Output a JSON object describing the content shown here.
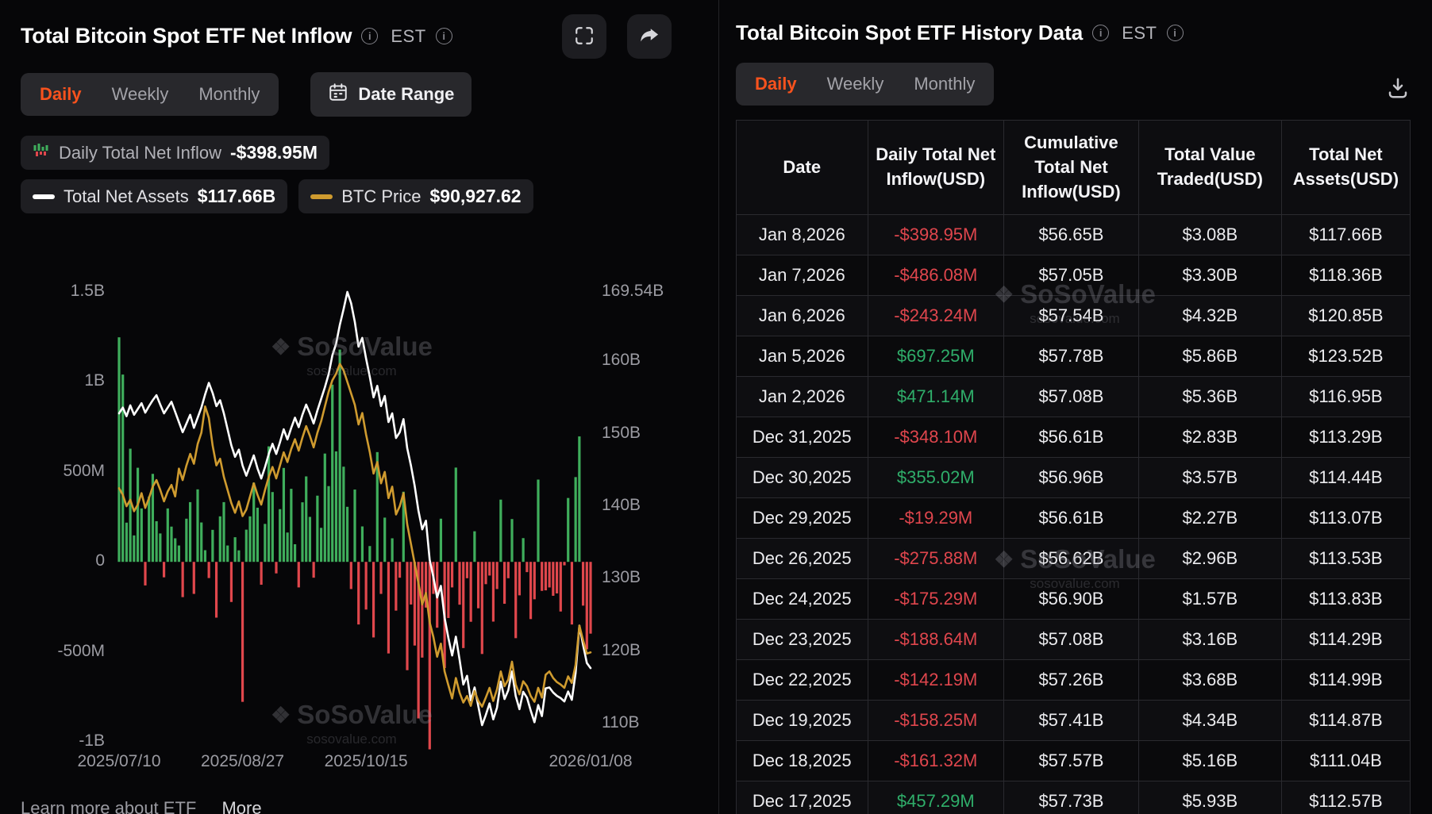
{
  "brand": {
    "name": "SoSoValue",
    "domain": "sosovalue.com",
    "accent": "#f8521d",
    "positive": "#3fae5c",
    "negative": "#e0474c",
    "btc_line": "#cf9b2f",
    "assets_line": "#ffffff"
  },
  "left_panel": {
    "title": "Total Bitcoin Spot ETF Net Inflow",
    "est_label": "EST",
    "tabs": [
      "Daily",
      "Weekly",
      "Monthly"
    ],
    "active_tab": "Daily",
    "date_range_label": "Date Range",
    "legend": {
      "inflow_label": "Daily Total Net Inflow",
      "inflow_value": "-$398.95M",
      "assets_label": "Total Net Assets",
      "assets_value": "$117.66B",
      "btc_label": "BTC Price",
      "btc_value": "$90,927.62"
    },
    "footer": {
      "learn": "Learn more about ETF",
      "more": "More"
    }
  },
  "chart_data": {
    "type": "bar",
    "title": "Total Bitcoin Spot ETF Net Inflow",
    "bar_series_name": "Daily Total Net Inflow (USD millions)",
    "colors": {
      "positive": "#3fae5c",
      "negative": "#e0474c"
    },
    "bars": [
      1248,
      1041,
      218,
      629,
      147,
      523,
      297,
      -131,
      363,
      489,
      226,
      158,
      -86,
      297,
      196,
      131,
      91,
      -196,
      240,
      332,
      -178,
      403,
      219,
      65,
      -90,
      178,
      -310,
      253,
      332,
      91,
      -223,
      137,
      64,
      -778,
      179,
      253,
      440,
      301,
      -127,
      211,
      642,
      388,
      -64,
      293,
      522,
      163,
      406,
      98,
      -142,
      331,
      475,
      250,
      -88,
      368,
      189,
      602,
      421,
      985,
      614,
      1180,
      529,
      306,
      -151,
      402,
      -348,
      197,
      -265,
      88,
      -420,
      610,
      -178,
      246,
      -509,
      131,
      -271,
      -88,
      390,
      -602,
      -237,
      -465,
      -870,
      -532,
      -254,
      -1042,
      -178,
      -366,
      240,
      -590,
      -312,
      -142,
      524,
      -238,
      -479,
      -91,
      -333,
      170,
      -258,
      -512,
      -124,
      -76,
      -332,
      -151,
      346,
      -233,
      -91,
      238,
      -424,
      -186,
      132,
      -57,
      -318,
      -208,
      457.29,
      -161.32,
      -158.25,
      -142.19,
      -188.64,
      -175.29,
      -275.88,
      -19.29,
      355.02,
      -348.1,
      471.14,
      697.25,
      -243.24,
      -486.08,
      -398.95
    ],
    "lines": [
      {
        "name": "Total Net Assets (USD billions)",
        "color": "#ffffff",
        "range": [
          107.5,
          169.54
        ],
        "values": [
          152.8,
          153.6,
          152.4,
          153.9,
          152.6,
          153.4,
          154.2,
          152.9,
          153.8,
          154.6,
          155.3,
          154.0,
          152.8,
          153.6,
          154.4,
          153.0,
          151.6,
          150.2,
          151.4,
          152.6,
          150.8,
          152.2,
          153.6,
          155.4,
          157.0,
          155.6,
          153.8,
          154.6,
          152.8,
          150.6,
          148.4,
          146.8,
          147.8,
          145.6,
          144.2,
          145.6,
          147.0,
          145.2,
          143.8,
          145.4,
          147.2,
          148.6,
          147.2,
          148.8,
          150.6,
          149.2,
          150.8,
          152.2,
          150.9,
          152.6,
          154.0,
          152.8,
          151.4,
          153.2,
          154.8,
          156.4,
          158.2,
          160.8,
          162.4,
          165.0,
          167.2,
          169.54,
          168.0,
          165.4,
          162.0,
          163.2,
          160.4,
          157.8,
          155.0,
          156.6,
          153.8,
          155.2,
          151.6,
          152.8,
          149.4,
          150.2,
          152.0,
          148.0,
          145.6,
          142.8,
          139.4,
          136.8,
          138.0,
          132.6,
          130.2,
          127.4,
          129.0,
          124.6,
          121.8,
          119.4,
          122.0,
          118.8,
          115.4,
          116.6,
          113.2,
          115.0,
          112.4,
          109.8,
          111.2,
          112.8,
          110.6,
          112.2,
          115.8,
          113.4,
          114.6,
          117.2,
          113.8,
          112.0,
          114.4,
          113.6,
          111.8,
          110.2,
          112.57,
          111.04,
          114.87,
          114.99,
          114.29,
          113.83,
          113.53,
          113.07,
          114.44,
          113.29,
          116.95,
          123.52,
          120.85,
          118.36,
          117.66
        ]
      },
      {
        "name": "BTC Price (USD thousands)",
        "color": "#cf9b2f",
        "range": [
          80,
          135
        ],
        "values": [
          111.0,
          110.2,
          108.8,
          109.6,
          108.2,
          109.0,
          110.4,
          108.6,
          109.8,
          111.2,
          112.0,
          110.8,
          109.4,
          110.6,
          111.4,
          110.0,
          113.4,
          112.0,
          113.8,
          115.2,
          114.0,
          116.4,
          117.8,
          121.0,
          119.6,
          116.2,
          113.8,
          114.6,
          112.4,
          110.8,
          109.2,
          108.0,
          109.4,
          107.6,
          108.4,
          110.0,
          111.6,
          110.2,
          109.0,
          110.8,
          112.4,
          113.6,
          112.2,
          113.8,
          115.4,
          114.2,
          115.8,
          117.0,
          115.6,
          117.2,
          118.6,
          117.4,
          116.0,
          117.8,
          119.2,
          121.0,
          122.8,
          124.2,
          125.0,
          126.2,
          125.4,
          124.0,
          122.6,
          121.2,
          118.8,
          120.2,
          117.6,
          115.4,
          112.8,
          114.2,
          111.6,
          113.0,
          109.8,
          111.2,
          107.8,
          108.8,
          110.4,
          106.6,
          104.2,
          101.8,
          99.4,
          96.8,
          98.2,
          94.6,
          92.8,
          90.4,
          92.0,
          88.6,
          86.9,
          85.3,
          87.8,
          86.0,
          84.8,
          85.6,
          84.4,
          86.2,
          85.0,
          84.3,
          85.4,
          86.6,
          85.0,
          86.4,
          88.6,
          86.8,
          87.6,
          89.8,
          87.0,
          85.8,
          87.4,
          86.8,
          85.6,
          84.9,
          86.6,
          85.4,
          88.2,
          88.6,
          87.8,
          87.3,
          87.0,
          86.6,
          88.0,
          87.2,
          89.4,
          94.2,
          92.4,
          90.8,
          90.93
        ]
      }
    ],
    "left_axis": {
      "range": [
        -1000,
        1500
      ],
      "ticks": [
        {
          "v": 1500,
          "label": "1.5B"
        },
        {
          "v": 1000,
          "label": "1B"
        },
        {
          "v": 500,
          "label": "500M"
        },
        {
          "v": 0,
          "label": "0"
        },
        {
          "v": -500,
          "label": "-500M"
        },
        {
          "v": -1000,
          "label": "-1B"
        }
      ]
    },
    "right_axis": {
      "range": [
        107.5,
        169.54
      ],
      "ticks": [
        {
          "v": 169.54,
          "label": "169.54B"
        },
        {
          "v": 160,
          "label": "160B"
        },
        {
          "v": 150,
          "label": "150B"
        },
        {
          "v": 140,
          "label": "140B"
        },
        {
          "v": 130,
          "label": "130B"
        },
        {
          "v": 120,
          "label": "120B"
        },
        {
          "v": 110,
          "label": "110B"
        }
      ]
    },
    "x_labels": [
      {
        "i": 0,
        "label": "2025/07/10"
      },
      {
        "i": 33,
        "label": "2025/08/27"
      },
      {
        "i": 66,
        "label": "2025/10/15"
      },
      {
        "i": 126,
        "label": "2026/01/08"
      }
    ],
    "legend_position": "top-left",
    "grid": false
  },
  "right_panel": {
    "title": "Total Bitcoin Spot ETF History Data",
    "est_label": "EST",
    "tabs": [
      "Daily",
      "Weekly",
      "Monthly"
    ],
    "active_tab": "Daily",
    "table": {
      "columns": [
        "Date",
        "Daily Total Net Inflow(USD)",
        "Cumulative Total Net Inflow(USD)",
        "Total Value Traded(USD)",
        "Total Net Assets(USD)"
      ],
      "rows": [
        {
          "date": "Jan 8,2026",
          "inflow": "-$398.95M",
          "cumulative": "$56.65B",
          "traded": "$3.08B",
          "assets": "$117.66B"
        },
        {
          "date": "Jan 7,2026",
          "inflow": "-$486.08M",
          "cumulative": "$57.05B",
          "traded": "$3.30B",
          "assets": "$118.36B"
        },
        {
          "date": "Jan 6,2026",
          "inflow": "-$243.24M",
          "cumulative": "$57.54B",
          "traded": "$4.32B",
          "assets": "$120.85B"
        },
        {
          "date": "Jan 5,2026",
          "inflow": "$697.25M",
          "cumulative": "$57.78B",
          "traded": "$5.86B",
          "assets": "$123.52B"
        },
        {
          "date": "Jan 2,2026",
          "inflow": "$471.14M",
          "cumulative": "$57.08B",
          "traded": "$5.36B",
          "assets": "$116.95B"
        },
        {
          "date": "Dec 31,2025",
          "inflow": "-$348.10M",
          "cumulative": "$56.61B",
          "traded": "$2.83B",
          "assets": "$113.29B"
        },
        {
          "date": "Dec 30,2025",
          "inflow": "$355.02M",
          "cumulative": "$56.96B",
          "traded": "$3.57B",
          "assets": "$114.44B"
        },
        {
          "date": "Dec 29,2025",
          "inflow": "-$19.29M",
          "cumulative": "$56.61B",
          "traded": "$2.27B",
          "assets": "$113.07B"
        },
        {
          "date": "Dec 26,2025",
          "inflow": "-$275.88M",
          "cumulative": "$56.62B",
          "traded": "$2.96B",
          "assets": "$113.53B"
        },
        {
          "date": "Dec 24,2025",
          "inflow": "-$175.29M",
          "cumulative": "$56.90B",
          "traded": "$1.57B",
          "assets": "$113.83B"
        },
        {
          "date": "Dec 23,2025",
          "inflow": "-$188.64M",
          "cumulative": "$57.08B",
          "traded": "$3.16B",
          "assets": "$114.29B"
        },
        {
          "date": "Dec 22,2025",
          "inflow": "-$142.19M",
          "cumulative": "$57.26B",
          "traded": "$3.68B",
          "assets": "$114.99B"
        },
        {
          "date": "Dec 19,2025",
          "inflow": "-$158.25M",
          "cumulative": "$57.41B",
          "traded": "$4.34B",
          "assets": "$114.87B"
        },
        {
          "date": "Dec 18,2025",
          "inflow": "-$161.32M",
          "cumulative": "$57.57B",
          "traded": "$5.16B",
          "assets": "$111.04B"
        },
        {
          "date": "Dec 17,2025",
          "inflow": "$457.29M",
          "cumulative": "$57.73B",
          "traded": "$5.93B",
          "assets": "$112.57B"
        }
      ]
    }
  }
}
